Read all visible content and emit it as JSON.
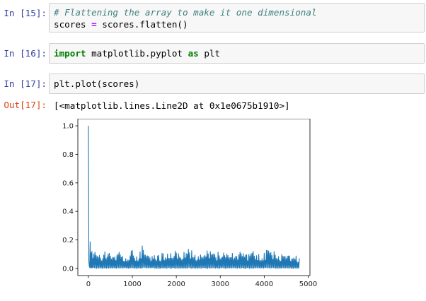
{
  "cells": [
    {
      "prompt": "In [15]:",
      "lines": [
        [
          {
            "t": "# Flattening the array to make it one dimensional",
            "c": "cm-comment"
          }
        ],
        [
          {
            "t": "scores ",
            "c": "cm-var"
          },
          {
            "t": "=",
            "c": "cm-op"
          },
          {
            "t": " scores.flatten()",
            "c": "cm-var"
          }
        ]
      ]
    },
    {
      "prompt": "In [16]:",
      "lines": [
        [
          {
            "t": "import",
            "c": "cm-keyword"
          },
          {
            "t": " matplotlib.pyplot ",
            "c": "cm-var"
          },
          {
            "t": "as",
            "c": "cm-keyword"
          },
          {
            "t": " plt",
            "c": "cm-var"
          }
        ]
      ]
    },
    {
      "prompt": "In [17]:",
      "lines": [
        [
          {
            "t": "plt.plot(scores)",
            "c": "cm-var"
          }
        ]
      ]
    }
  ],
  "output": {
    "prompt": "Out[17]:",
    "text": "[<matplotlib.lines.Line2D at 0x1e0675b1910>]"
  },
  "chart_data": {
    "type": "line",
    "title": "",
    "xlabel": "",
    "ylabel": "",
    "xlim": [
      -240,
      5040
    ],
    "ylim": [
      -0.05,
      1.05
    ],
    "xticks": [
      0,
      1000,
      2000,
      3000,
      4000,
      5000
    ],
    "yticks": [
      0.0,
      0.2,
      0.4,
      0.6,
      0.8,
      1.0
    ],
    "xtick_labels": [
      "0",
      "1000",
      "2000",
      "3000",
      "4000",
      "5000"
    ],
    "ytick_labels": [
      "0.0",
      "0.2",
      "0.4",
      "0.6",
      "0.8",
      "1.0"
    ],
    "grid": false,
    "line_color": "#1f77b4",
    "series": [
      {
        "x": [
          0,
          10,
          20,
          40,
          60,
          80,
          100,
          150,
          200,
          300,
          400,
          500,
          600,
          700,
          800,
          900,
          1000,
          1100,
          1200,
          1250,
          1300,
          1400,
          1500,
          1600,
          1700,
          1800,
          1900,
          2000,
          2100,
          2200,
          2300,
          2400,
          2500,
          2600,
          2700,
          2800,
          2900,
          3000,
          3100,
          3200,
          3300,
          3400,
          3500,
          3600,
          3700,
          3800,
          3900,
          4000,
          4100,
          4200,
          4300,
          4400,
          4500,
          4600,
          4700,
          4800
        ],
        "y": [
          1.0,
          0.05,
          0.02,
          0.24,
          0.2,
          0.14,
          0.12,
          0.12,
          0.11,
          0.1,
          0.13,
          0.11,
          0.1,
          0.12,
          0.11,
          0.1,
          0.13,
          0.11,
          0.12,
          0.2,
          0.14,
          0.11,
          0.13,
          0.1,
          0.12,
          0.11,
          0.13,
          0.12,
          0.1,
          0.12,
          0.15,
          0.11,
          0.12,
          0.1,
          0.13,
          0.12,
          0.11,
          0.12,
          0.14,
          0.12,
          0.11,
          0.12,
          0.15,
          0.11,
          0.12,
          0.13,
          0.11,
          0.12,
          0.14,
          0.13,
          0.1,
          0.11,
          0.12,
          0.11,
          0.1,
          0.07
        ]
      }
    ]
  }
}
